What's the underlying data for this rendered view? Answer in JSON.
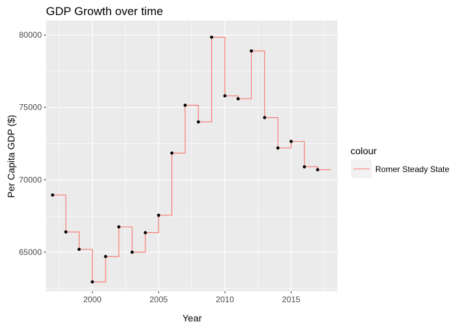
{
  "chart_data": {
    "type": "line",
    "title": "GDP Growth over time",
    "xlabel": "Year",
    "ylabel": "Per Capita GDP ($)",
    "xlim": [
      1996.5,
      2018.5
    ],
    "ylim": [
      62300,
      81000
    ],
    "x_ticks": [
      2000,
      2005,
      2010,
      2015
    ],
    "y_ticks": [
      65000,
      70000,
      75000,
      80000
    ],
    "x_tick_labels": [
      "2000",
      "2005",
      "2010",
      "2015"
    ],
    "y_tick_labels": [
      "65000",
      "70000",
      "75000",
      "80000"
    ],
    "grid": true,
    "legend": {
      "title": "colour",
      "placement": "right",
      "entries": [
        "Romer Steady State"
      ]
    },
    "series": [
      {
        "name": "Romer Steady State",
        "style": "step",
        "color": "#f8766d",
        "x": [
          1997,
          1998,
          1999,
          2000,
          2001,
          2002,
          2003,
          2004,
          2005,
          2006,
          2007,
          2008,
          2009,
          2010,
          2011,
          2012,
          2013,
          2014,
          2015,
          2016,
          2017,
          2018
        ],
        "values": [
          68950,
          66400,
          65200,
          62950,
          64700,
          66750,
          65000,
          66350,
          67550,
          71850,
          75150,
          74000,
          79850,
          75800,
          75600,
          78900,
          74300,
          72200,
          72650,
          70900,
          70700,
          70700
        ]
      },
      {
        "name": "",
        "style": "points",
        "color": "#000000",
        "x": [
          1997,
          1998,
          1999,
          2000,
          2001,
          2002,
          2003,
          2004,
          2005,
          2006,
          2007,
          2008,
          2009,
          2010,
          2011,
          2012,
          2013,
          2014,
          2015,
          2016,
          2017
        ],
        "values": [
          68950,
          66400,
          65200,
          62950,
          64700,
          66750,
          65000,
          66350,
          67550,
          71850,
          75150,
          74000,
          79850,
          75800,
          75600,
          78900,
          74300,
          72200,
          72650,
          70900,
          70700
        ]
      }
    ],
    "colors": {
      "panel": "#ebebeb",
      "grid_major": "#ffffff",
      "step_line": "#f8766d",
      "points": "#000000",
      "legend_key": "#f2f2f2"
    }
  }
}
